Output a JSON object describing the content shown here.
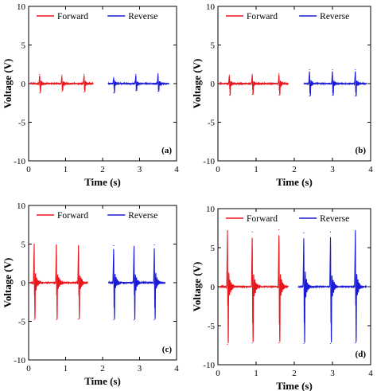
{
  "chart_data": [
    {
      "type": "line",
      "panel_label": "(a)",
      "xlabel": "Time (s)",
      "ylabel": "Voltage (V)",
      "xlim": [
        0,
        4
      ],
      "ylim": [
        -10,
        10
      ],
      "xticks": [
        0,
        1,
        2,
        3,
        4
      ],
      "yticks": [
        10,
        5,
        0,
        -5,
        -10
      ],
      "legend_position": "top",
      "series": [
        {
          "name": "Forward",
          "color": "#e8151b",
          "spikes": [
            {
              "t": 0.3,
              "peak": 1.2,
              "trough": -1.2
            },
            {
              "t": 0.9,
              "peak": 1.1,
              "trough": -1.0
            },
            {
              "t": 1.5,
              "peak": 1.2,
              "trough": -1.1
            }
          ]
        },
        {
          "name": "Reverse",
          "color": "#1a1ad6",
          "spikes": [
            {
              "t": 2.3,
              "peak": 0.8,
              "trough": -1.2
            },
            {
              "t": 2.9,
              "peak": 1.2,
              "trough": -0.9
            },
            {
              "t": 3.5,
              "peak": 1.3,
              "trough": -1.0
            }
          ]
        }
      ]
    },
    {
      "type": "line",
      "panel_label": "(b)",
      "xlabel": "Time (s)",
      "ylabel": "Voltage (V)",
      "xlim": [
        0,
        4
      ],
      "ylim": [
        -10,
        10
      ],
      "xticks": [
        0,
        1,
        2,
        3,
        4
      ],
      "yticks": [
        10,
        5,
        0,
        -5,
        -10
      ],
      "legend_position": "top",
      "series": [
        {
          "name": "Forward",
          "color": "#e8151b",
          "spikes": [
            {
              "t": 0.3,
              "peak": 1.1,
              "trough": -1.5
            },
            {
              "t": 0.9,
              "peak": 1.2,
              "trough": -1.4
            },
            {
              "t": 1.6,
              "peak": 1.3,
              "trough": -1.5
            }
          ]
        },
        {
          "name": "Reverse",
          "color": "#1a1ad6",
          "spikes": [
            {
              "t": 2.4,
              "peak": 1.8,
              "trough": -1.6
            },
            {
              "t": 3.0,
              "peak": 1.8,
              "trough": -1.5
            },
            {
              "t": 3.6,
              "peak": 1.8,
              "trough": -1.6
            }
          ]
        }
      ]
    },
    {
      "type": "line",
      "panel_label": "(c)",
      "xlabel": "Time (s)",
      "ylabel": "Voltage (V)",
      "xlim": [
        0,
        4
      ],
      "ylim": [
        -10,
        10
      ],
      "xticks": [
        0,
        1,
        2,
        3,
        4
      ],
      "yticks": [
        10,
        5,
        0,
        -5,
        -10
      ],
      "legend_position": "top",
      "series": [
        {
          "name": "Forward",
          "color": "#e8151b",
          "spikes": [
            {
              "t": 0.15,
              "peak": 5.0,
              "trough": -4.8
            },
            {
              "t": 0.75,
              "peak": 4.9,
              "trough": -4.8
            },
            {
              "t": 1.35,
              "peak": 4.8,
              "trough": -4.7
            }
          ]
        },
        {
          "name": "Reverse",
          "color": "#1a1ad6",
          "spikes": [
            {
              "t": 2.3,
              "peak": 4.8,
              "trough": -4.8
            },
            {
              "t": 2.85,
              "peak": 4.7,
              "trough": -4.8
            },
            {
              "t": 3.4,
              "peak": 4.9,
              "trough": -4.8
            }
          ]
        }
      ]
    },
    {
      "type": "line",
      "panel_label": "(d)",
      "xlabel": "Time (s)",
      "ylabel": "Voltage (V)",
      "xlim": [
        0,
        4
      ],
      "ylim": [
        -10,
        10
      ],
      "xticks": [
        0,
        1,
        2,
        3,
        4
      ],
      "yticks": [
        10,
        5,
        0,
        -5,
        -10
      ],
      "legend_position": "top",
      "series": [
        {
          "name": "Forward",
          "color": "#e8151b",
          "spikes": [
            {
              "t": 0.25,
              "peak": 7.2,
              "trough": -7.4
            },
            {
              "t": 0.9,
              "peak": 7.0,
              "trough": -7.2
            },
            {
              "t": 1.6,
              "peak": 7.3,
              "trough": -7.2
            }
          ]
        },
        {
          "name": "Reverse",
          "color": "#1a1ad6",
          "spikes": [
            {
              "t": 2.25,
              "peak": 6.9,
              "trough": -7.3
            },
            {
              "t": 2.95,
              "peak": 7.0,
              "trough": -7.3
            },
            {
              "t": 3.6,
              "peak": 7.2,
              "trough": -7.2
            }
          ]
        }
      ]
    }
  ]
}
